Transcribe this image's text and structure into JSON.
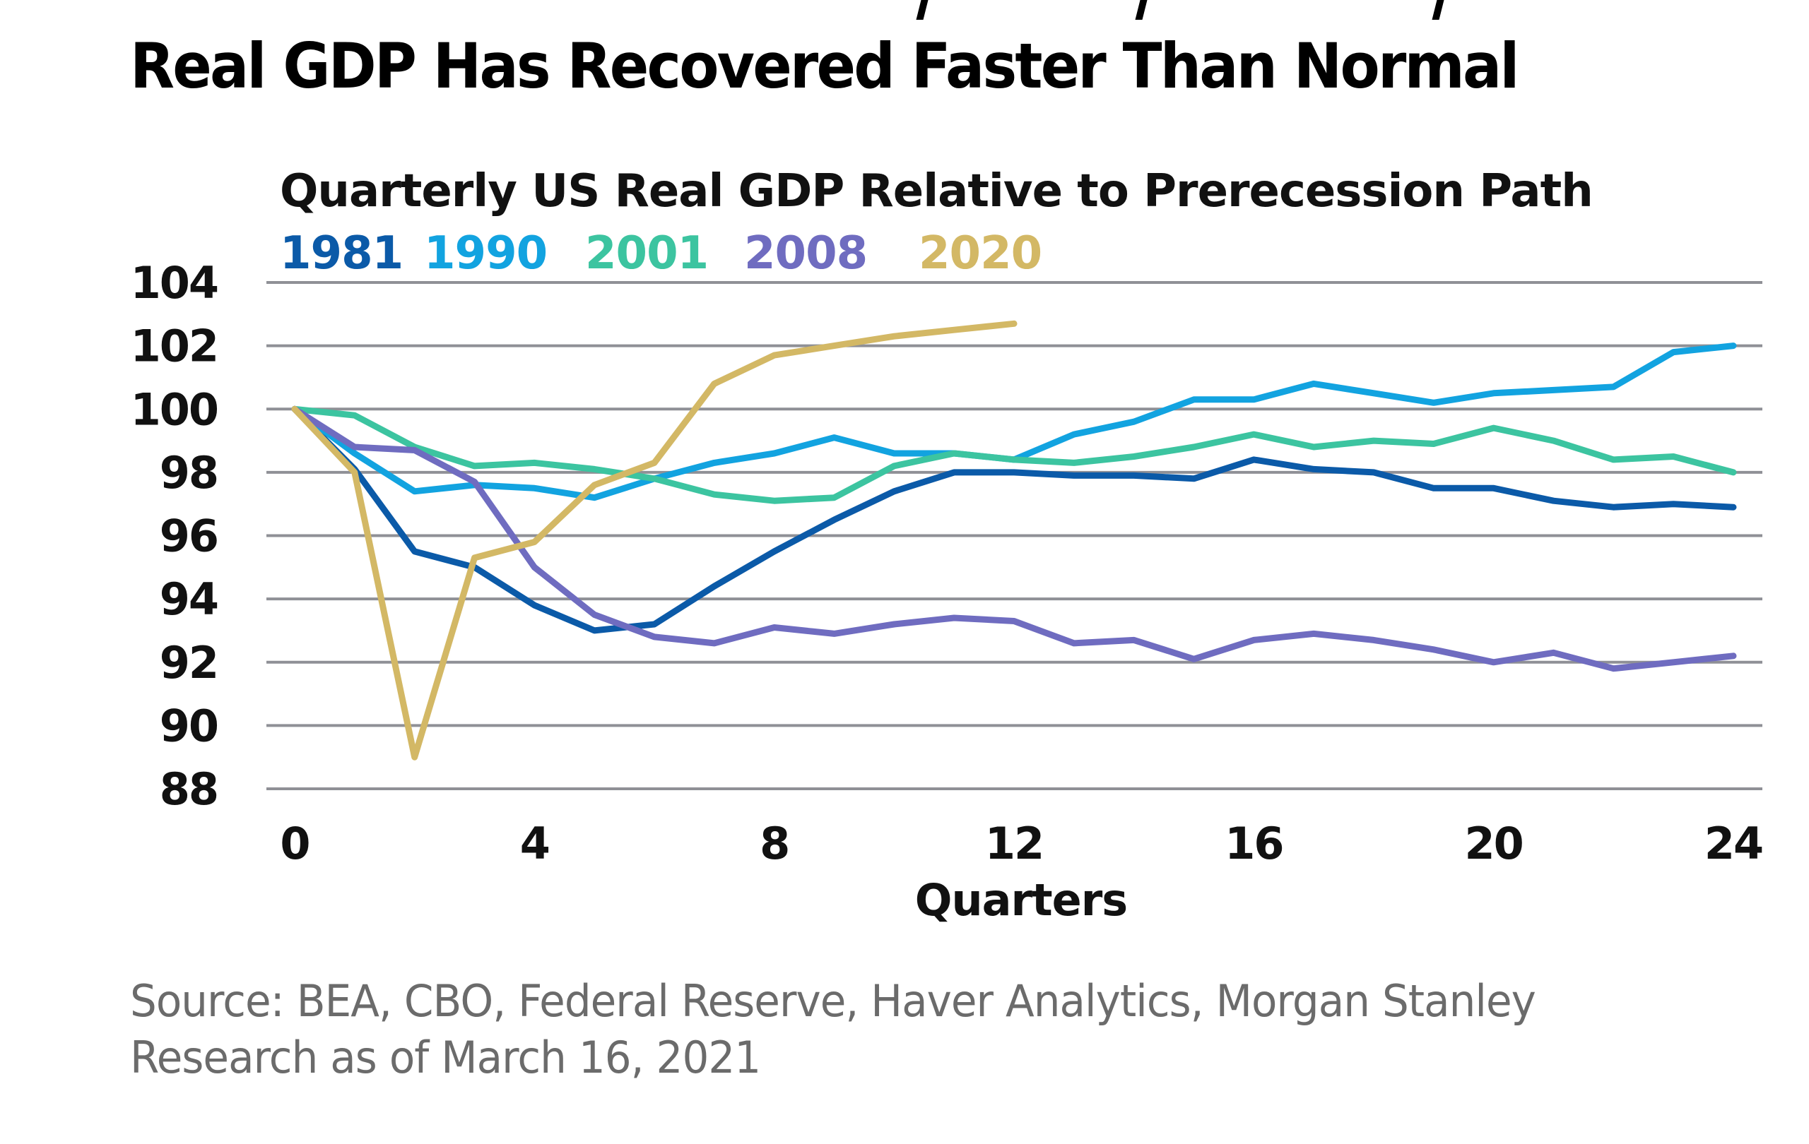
{
  "headline": "Real GDP Has Recovered Faster Than Normal",
  "source_lines": [
    "Source: BEA, CBO, Federal Reserve, Haver Analytics, Morgan Stanley",
    "Research as of March 16, 2021"
  ],
  "chart_data": {
    "type": "line",
    "title": "Quarterly US Real GDP Relative to Prerecession Path",
    "xlabel": "Quarters",
    "ylabel": "",
    "xlim": [
      0,
      24
    ],
    "ylim": [
      88,
      104
    ],
    "x_ticks": [
      0,
      4,
      8,
      12,
      16,
      20,
      24
    ],
    "y_ticks": [
      104,
      102,
      100,
      98,
      96,
      94,
      92,
      90,
      88
    ],
    "grid": "horizontal",
    "legend_placement": "top-left",
    "series": [
      {
        "name": "1981",
        "color": "#0b5aa8",
        "x": [
          0,
          1,
          2,
          3,
          4,
          5,
          6,
          7,
          8,
          9,
          10,
          11,
          12,
          13,
          14,
          15,
          16,
          17,
          18,
          19,
          20,
          21,
          22,
          23,
          24
        ],
        "values": [
          100,
          98.1,
          95.5,
          95.0,
          93.8,
          93.0,
          93.2,
          94.4,
          95.5,
          96.5,
          97.4,
          98.0,
          98.0,
          97.9,
          97.9,
          97.8,
          98.4,
          98.1,
          98.0,
          97.5,
          97.5,
          97.1,
          96.9,
          97.0,
          96.9
        ]
      },
      {
        "name": "1990",
        "color": "#12a3e0",
        "x": [
          0,
          1,
          2,
          3,
          4,
          5,
          6,
          7,
          8,
          9,
          10,
          11,
          12,
          13,
          14,
          15,
          16,
          17,
          18,
          19,
          20,
          21,
          22,
          23,
          24
        ],
        "values": [
          100,
          98.6,
          97.4,
          97.6,
          97.5,
          97.2,
          97.8,
          98.3,
          98.6,
          99.1,
          98.6,
          98.6,
          98.4,
          99.2,
          99.6,
          100.3,
          100.3,
          100.8,
          100.5,
          100.2,
          100.5,
          100.6,
          100.7,
          101.8,
          102.0
        ]
      },
      {
        "name": "2001",
        "color": "#3cc4a0",
        "x": [
          0,
          1,
          2,
          3,
          4,
          5,
          6,
          7,
          8,
          9,
          10,
          11,
          12,
          13,
          14,
          15,
          16,
          17,
          18,
          19,
          20,
          21,
          22,
          23,
          24
        ],
        "values": [
          100,
          99.8,
          98.8,
          98.2,
          98.3,
          98.1,
          97.8,
          97.3,
          97.1,
          97.2,
          98.2,
          98.6,
          98.4,
          98.3,
          98.5,
          98.8,
          99.2,
          98.8,
          99.0,
          98.9,
          99.4,
          99.0,
          98.4,
          98.5,
          98.0
        ]
      },
      {
        "name": "2008",
        "color": "#6f6cc0",
        "x": [
          0,
          1,
          2,
          3,
          4,
          5,
          6,
          7,
          8,
          9,
          10,
          11,
          12,
          13,
          14,
          15,
          16,
          17,
          18,
          19,
          20,
          21,
          22,
          23,
          24
        ],
        "values": [
          100,
          98.8,
          98.7,
          97.7,
          95.0,
          93.5,
          92.8,
          92.6,
          93.1,
          92.9,
          93.2,
          93.4,
          93.3,
          92.6,
          92.7,
          92.1,
          92.7,
          92.9,
          92.7,
          92.4,
          92.0,
          92.3,
          91.8,
          92.0,
          92.2
        ]
      },
      {
        "name": "2020",
        "color": "#d3b865",
        "x": [
          0,
          1,
          2,
          3,
          4,
          5,
          6,
          7,
          8,
          9,
          10,
          11,
          12
        ],
        "values": [
          100,
          98.0,
          89.0,
          95.3,
          95.8,
          97.6,
          98.3,
          100.8,
          101.7,
          102.0,
          102.3,
          102.5,
          102.7
        ]
      }
    ]
  }
}
